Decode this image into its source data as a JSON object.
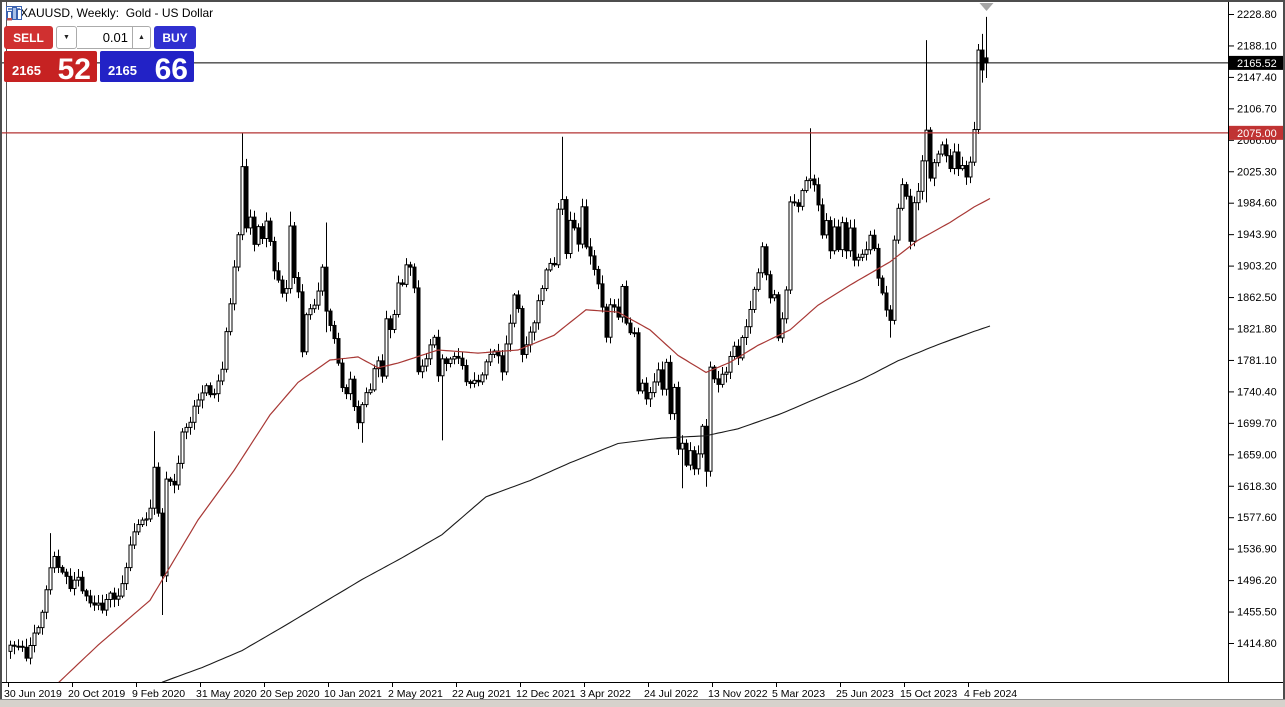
{
  "titlebar": {
    "title": "XAUUSD, Weekly:  Gold - US Dollar",
    "icons": [
      "quotes-table-icon",
      "bar-chart-icon"
    ]
  },
  "trade_panel": {
    "sell_label": "SELL",
    "buy_label": "BUY",
    "volume_value": "0.01",
    "dropdown_glyph": "▼",
    "step_up_glyph": "▲",
    "sell_price_small": "2165",
    "sell_price_big": "52",
    "buy_price_small": "2165",
    "buy_price_big": "66"
  },
  "colors": {
    "sell_red": "#D03030",
    "sell_red_dark": "#C62222",
    "buy_blue": "#3030D0",
    "buy_blue_dark": "#2222C6",
    "hline_red": "#B43434",
    "tag_hline_bg": "#C03333",
    "tag_current_bg": "#000000",
    "current_line": "#000000",
    "ma_fast_red": "#A83835",
    "ma_slow_black": "#1A1A1A",
    "candle_bull": "#FFFFFF",
    "candle_bear": "#000000",
    "candle_outline": "#000000",
    "marker_gray": "#A6A6A6",
    "frame": "#4D4D4D",
    "axis_text": "#000000"
  },
  "chart_data": {
    "type": "candlestick",
    "symbol": "XAUUSD",
    "timeframe": "Weekly",
    "description": "Gold - US Dollar",
    "current_price": 2165.52,
    "current_price_label": "2165.52",
    "hline_price": 2075.0,
    "hline_label": "2075.00",
    "y_axis": {
      "ticks": [
        "2228.80",
        "2188.10",
        "2147.40",
        "2106.70",
        "2066.00",
        "2025.30",
        "1984.60",
        "1943.90",
        "1903.20",
        "1862.50",
        "1821.80",
        "1781.10",
        "1740.40",
        "1699.70",
        "1659.00",
        "1618.30",
        "1577.60",
        "1536.90",
        "1496.20",
        "1455.50",
        "1414.80"
      ],
      "step": 40.7
    },
    "x_axis": {
      "labels": [
        "30 Jun 2019",
        "20 Oct 2019",
        "9 Feb 2020",
        "31 May 2020",
        "20 Sep 2020",
        "10 Jan 2021",
        "2 May 2021",
        "22 Aug 2021",
        "12 Dec 2021",
        "3 Apr 2022",
        "24 Jul 2022",
        "13 Nov 2022",
        "5 Mar 2023",
        "25 Jun 2023",
        "15 Oct 2023",
        "4 Feb 2024"
      ],
      "weeks_per_label": 16
    },
    "weeks_total": 245,
    "close_anchors": [
      [
        0,
        1409
      ],
      [
        2,
        1413
      ],
      [
        4,
        1398
      ],
      [
        6,
        1425
      ],
      [
        8,
        1452
      ],
      [
        10,
        1515
      ],
      [
        11,
        1523
      ],
      [
        13,
        1507
      ],
      [
        15,
        1489
      ],
      [
        17,
        1499
      ],
      [
        19,
        1472
      ],
      [
        21,
        1465
      ],
      [
        23,
        1461
      ],
      [
        25,
        1478
      ],
      [
        27,
        1472
      ],
      [
        29,
        1514
      ],
      [
        31,
        1562
      ],
      [
        33,
        1572
      ],
      [
        35,
        1586
      ],
      [
        36,
        1643
      ],
      [
        37,
        1585
      ],
      [
        38,
        1498
      ],
      [
        39,
        1630
      ],
      [
        41,
        1617
      ],
      [
        43,
        1685
      ],
      [
        45,
        1703
      ],
      [
        47,
        1732
      ],
      [
        49,
        1745
      ],
      [
        51,
        1735
      ],
      [
        53,
        1772
      ],
      [
        55,
        1856
      ],
      [
        56,
        1902
      ],
      [
        57,
        1940
      ],
      [
        58,
        2035
      ],
      [
        59,
        1950
      ],
      [
        60,
        1965
      ],
      [
        61,
        1934
      ],
      [
        62,
        1950
      ],
      [
        63,
        1940
      ],
      [
        64,
        1962
      ],
      [
        66,
        1900
      ],
      [
        68,
        1866
      ],
      [
        69,
        1877
      ],
      [
        70,
        1951
      ],
      [
        71,
        1889
      ],
      [
        72,
        1871
      ],
      [
        73,
        1788
      ],
      [
        74,
        1843
      ],
      [
        76,
        1850
      ],
      [
        78,
        1898
      ],
      [
        79,
        1845
      ],
      [
        80,
        1828
      ],
      [
        81,
        1805
      ],
      [
        82,
        1780
      ],
      [
        83,
        1745
      ],
      [
        84,
        1735
      ],
      [
        85,
        1760
      ],
      [
        86,
        1718
      ],
      [
        87,
        1700
      ],
      [
        88,
        1726
      ],
      [
        89,
        1735
      ],
      [
        90,
        1745
      ],
      [
        91,
        1770
      ],
      [
        92,
        1777
      ],
      [
        93,
        1764
      ],
      [
        94,
        1832
      ],
      [
        95,
        1820
      ],
      [
        96,
        1843
      ],
      [
        97,
        1877
      ],
      [
        98,
        1881
      ],
      [
        99,
        1905
      ],
      [
        100,
        1898
      ],
      [
        101,
        1878
      ],
      [
        102,
        1764
      ],
      [
        103,
        1772
      ],
      [
        104,
        1786
      ],
      [
        105,
        1797
      ],
      [
        106,
        1812
      ],
      [
        107,
        1762
      ],
      [
        108,
        1779
      ],
      [
        110,
        1781
      ],
      [
        112,
        1787
      ],
      [
        114,
        1754
      ],
      [
        116,
        1751
      ],
      [
        118,
        1761
      ],
      [
        120,
        1792
      ],
      [
        122,
        1787
      ],
      [
        123,
        1768
      ],
      [
        124,
        1798
      ],
      [
        126,
        1865
      ],
      [
        127,
        1845
      ],
      [
        128,
        1792
      ],
      [
        129,
        1798
      ],
      [
        130,
        1817
      ],
      [
        131,
        1832
      ],
      [
        132,
        1854
      ],
      [
        134,
        1898
      ],
      [
        136,
        1908
      ],
      [
        137,
        1974
      ],
      [
        138,
        1988
      ],
      [
        139,
        1922
      ],
      [
        140,
        1958
      ],
      [
        141,
        1954
      ],
      [
        142,
        1932
      ],
      [
        143,
        1976
      ],
      [
        144,
        1931
      ],
      [
        146,
        1897
      ],
      [
        147,
        1883
      ],
      [
        148,
        1846
      ],
      [
        149,
        1812
      ],
      [
        150,
        1854
      ],
      [
        151,
        1846
      ],
      [
        152,
        1840
      ],
      [
        153,
        1875
      ],
      [
        154,
        1827
      ],
      [
        156,
        1813
      ],
      [
        157,
        1742
      ],
      [
        158,
        1753
      ],
      [
        159,
        1727
      ],
      [
        160,
        1742
      ],
      [
        161,
        1752
      ],
      [
        162,
        1766
      ],
      [
        163,
        1747
      ],
      [
        164,
        1775
      ],
      [
        165,
        1712
      ],
      [
        166,
        1748
      ],
      [
        167,
        1662
      ],
      [
        168,
        1676
      ],
      [
        169,
        1645
      ],
      [
        170,
        1661
      ],
      [
        171,
        1644
      ],
      [
        172,
        1657
      ],
      [
        173,
        1695
      ],
      [
        174,
        1640
      ],
      [
        175,
        1768
      ],
      [
        177,
        1750
      ],
      [
        179,
        1769
      ],
      [
        181,
        1798
      ],
      [
        182,
        1787
      ],
      [
        184,
        1826
      ],
      [
        186,
        1869
      ],
      [
        188,
        1926
      ],
      [
        189,
        1890
      ],
      [
        190,
        1865
      ],
      [
        191,
        1862
      ],
      [
        192,
        1811
      ],
      [
        193,
        1836
      ],
      [
        194,
        1868
      ],
      [
        195,
        1989
      ],
      [
        197,
        1978
      ],
      [
        198,
        2004
      ],
      [
        200,
        2016
      ],
      [
        201,
        2010
      ],
      [
        202,
        1978
      ],
      [
        203,
        1946
      ],
      [
        204,
        1961
      ],
      [
        205,
        1920
      ],
      [
        206,
        1957
      ],
      [
        207,
        1921
      ],
      [
        208,
        1959
      ],
      [
        209,
        1925
      ],
      [
        210,
        1948
      ],
      [
        211,
        1913
      ],
      [
        213,
        1915
      ],
      [
        215,
        1940
      ],
      [
        216,
        1925
      ],
      [
        217,
        1890
      ],
      [
        218,
        1864
      ],
      [
        219,
        1848
      ],
      [
        220,
        1833
      ],
      [
        221,
        1933
      ],
      [
        222,
        1981
      ],
      [
        223,
        2006
      ],
      [
        224,
        1992
      ],
      [
        225,
        1938
      ],
      [
        226,
        1981
      ],
      [
        227,
        2001
      ],
      [
        228,
        2040
      ],
      [
        229,
        2075
      ],
      [
        230,
        2020
      ],
      [
        231,
        2035
      ],
      [
        232,
        2046
      ],
      [
        233,
        2063
      ],
      [
        234,
        2042
      ],
      [
        235,
        2030
      ],
      [
        236,
        2052
      ],
      [
        237,
        2025
      ],
      [
        238,
        2036
      ],
      [
        239,
        2017
      ],
      [
        240,
        2035
      ],
      [
        241,
        2083
      ],
      [
        242,
        2179
      ],
      [
        243,
        2157
      ],
      [
        244,
        2165.52
      ]
    ],
    "wick_overrides": {
      "10": {
        "high": 1557
      },
      "36": {
        "high": 1689
      },
      "38": {
        "low": 1451
      },
      "58": {
        "high": 2075
      },
      "70": {
        "high": 1973
      },
      "79": {
        "high": 1959,
        "low": 1817
      },
      "88": {
        "low": 1674
      },
      "108": {
        "low": 1677
      },
      "138": {
        "high": 2070
      },
      "168": {
        "low": 1615
      },
      "174": {
        "low": 1617
      },
      "200": {
        "high": 2081
      },
      "220": {
        "low": 1810
      },
      "229": {
        "high": 2195,
        "low": 1985
      },
      "242": {
        "high": 2190
      },
      "243": {
        "high": 2203,
        "low": 2140
      },
      "244": {
        "high": 2225,
        "low": 2146,
        "open": 2172,
        "close": 2165.52
      }
    },
    "ma_fast_red": [
      [
        11,
        1358
      ],
      [
        22,
        1412
      ],
      [
        35,
        1470
      ],
      [
        47,
        1574
      ],
      [
        56,
        1638
      ],
      [
        65,
        1710
      ],
      [
        72,
        1752
      ],
      [
        80,
        1781
      ],
      [
        87,
        1785
      ],
      [
        92,
        1771
      ],
      [
        97,
        1777
      ],
      [
        107,
        1794
      ],
      [
        117,
        1790
      ],
      [
        127,
        1794
      ],
      [
        136,
        1813
      ],
      [
        144,
        1846
      ],
      [
        152,
        1843
      ],
      [
        160,
        1820
      ],
      [
        167,
        1787
      ],
      [
        174,
        1765
      ],
      [
        180,
        1778
      ],
      [
        187,
        1800
      ],
      [
        195,
        1820
      ],
      [
        202,
        1852
      ],
      [
        210,
        1878
      ],
      [
        220,
        1908
      ],
      [
        227,
        1936
      ],
      [
        235,
        1959
      ],
      [
        241,
        1979
      ],
      [
        245,
        1990
      ]
    ],
    "ma_slow_black": [
      [
        38,
        1364
      ],
      [
        48,
        1383
      ],
      [
        58,
        1405
      ],
      [
        68,
        1435
      ],
      [
        78,
        1466
      ],
      [
        88,
        1497
      ],
      [
        98,
        1525
      ],
      [
        108,
        1555
      ],
      [
        119,
        1604
      ],
      [
        130,
        1625
      ],
      [
        140,
        1648
      ],
      [
        152,
        1673
      ],
      [
        163,
        1680
      ],
      [
        174,
        1683
      ],
      [
        182,
        1692
      ],
      [
        193,
        1712
      ],
      [
        202,
        1732
      ],
      [
        213,
        1756
      ],
      [
        222,
        1780
      ],
      [
        232,
        1801
      ],
      [
        241,
        1818
      ],
      [
        245,
        1825
      ]
    ]
  }
}
